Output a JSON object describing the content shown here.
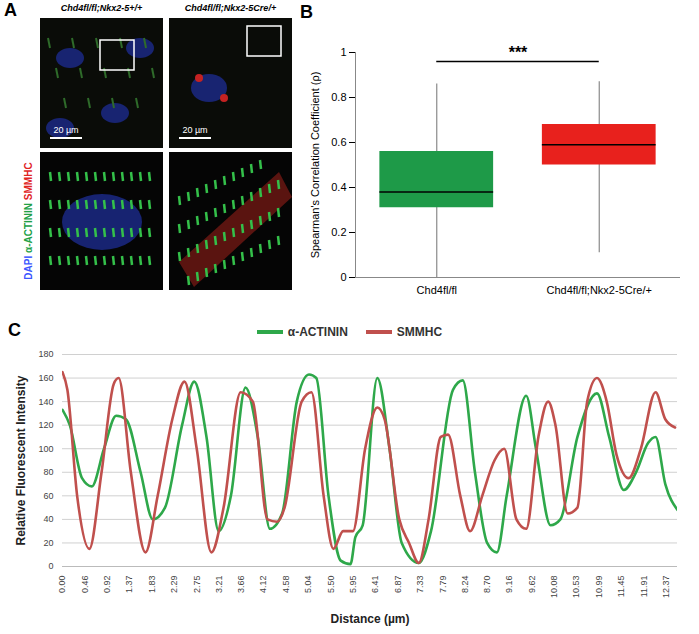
{
  "panel_a": {
    "panel_label": "A",
    "columns": [
      "Chd4fl/fl;Nkx2-5+/+",
      "Chd4fl/fl;Nkx2-5Cre/+"
    ],
    "scale_bar": "20 µm",
    "channels": [
      {
        "text": "DAPI",
        "color": "#3b55ff"
      },
      {
        "text": "α-ACTININ",
        "color": "#22a046"
      },
      {
        "text": "SMMHC",
        "color": "#e0261f"
      }
    ]
  },
  "chart_data": [
    {
      "panel_label": "B",
      "type": "box",
      "categories": [
        "Chd4fl/fl",
        "Chd4fl/fl;Nkx2-5Cre/+"
      ],
      "colors": [
        "#1e9a48",
        "#e8211d"
      ],
      "boxes": [
        {
          "min": 0,
          "q1": 0.31,
          "median": 0.38,
          "q3": 0.56,
          "max": 0.86
        },
        {
          "min": 0.11,
          "q1": 0.5,
          "median": 0.59,
          "q3": 0.68,
          "max": 0.87
        }
      ],
      "ylabel": "Spearman's Correlation Coefficient (ρ)",
      "ylim": [
        0,
        1
      ],
      "yticks": [
        0,
        0.2,
        0.4,
        0.6,
        0.8,
        1
      ],
      "annotations": [
        {
          "text": "***",
          "x": [
            0,
            1
          ],
          "y": 0.96
        }
      ]
    },
    {
      "panel_label": "C",
      "type": "line",
      "xlabel": "Distance (µm)",
      "ylabel": "Relative Fluorescent Intensity",
      "xlim": [
        0,
        12.6
      ],
      "xticks": [
        {
          "value": 0,
          "label": "0.00"
        },
        {
          "value": 0.46,
          "label": "0.46"
        },
        {
          "value": 0.92,
          "label": "0.92"
        },
        {
          "value": 1.37,
          "label": "1.37"
        },
        {
          "value": 1.83,
          "label": "1.83"
        },
        {
          "value": 2.29,
          "label": "2.29"
        },
        {
          "value": 2.75,
          "label": "2.75"
        },
        {
          "value": 3.21,
          "label": "3.21"
        },
        {
          "value": 3.66,
          "label": "3.66"
        },
        {
          "value": 4.12,
          "label": "4.12"
        },
        {
          "value": 4.58,
          "label": "4.58"
        },
        {
          "value": 5.04,
          "label": "5.04"
        },
        {
          "value": 5.5,
          "label": "5.50"
        },
        {
          "value": 5.95,
          "label": "5.95"
        },
        {
          "value": 6.41,
          "label": "6.41"
        },
        {
          "value": 6.87,
          "label": "6.87"
        },
        {
          "value": 7.33,
          "label": "7.33"
        },
        {
          "value": 7.79,
          "label": "7.79"
        },
        {
          "value": 8.24,
          "label": "8.24"
        },
        {
          "value": 8.7,
          "label": "8.70"
        },
        {
          "value": 9.16,
          "label": "9.16"
        },
        {
          "value": 9.62,
          "label": "9.62"
        },
        {
          "value": 10.08,
          "label": "10.08"
        },
        {
          "value": 10.53,
          "label": "10.53"
        },
        {
          "value": 10.99,
          "label": "10.99"
        },
        {
          "value": 11.45,
          "label": "11.45"
        },
        {
          "value": 11.91,
          "label": "11.91"
        },
        {
          "value": 12.37,
          "label": "12.37"
        }
      ],
      "ylim": [
        0,
        180
      ],
      "yticks": [
        0,
        20,
        40,
        60,
        80,
        100,
        120,
        140,
        160,
        180
      ],
      "grid": true,
      "legend": "top",
      "series": [
        {
          "name": "α-ACTININ",
          "color": "#2ea84a",
          "x": [
            0,
            0.15,
            0.4,
            0.6,
            0.85,
            1.1,
            1.3,
            1.6,
            1.85,
            2.1,
            2.45,
            2.7,
            2.95,
            3.2,
            3.45,
            3.75,
            4.0,
            4.25,
            4.5,
            4.8,
            5.05,
            5.2,
            5.45,
            5.7,
            5.9,
            6.0,
            6.15,
            6.45,
            6.7,
            6.95,
            7.3,
            7.55,
            8.0,
            8.2,
            8.45,
            8.7,
            8.9,
            9.1,
            9.5,
            9.7,
            10.0,
            10.2,
            10.55,
            10.95,
            11.2,
            11.5,
            11.75,
            12.0,
            12.15,
            12.35,
            12.6
          ],
          "values": [
            133,
            120,
            75,
            68,
            100,
            128,
            125,
            80,
            40,
            50,
            120,
            157,
            110,
            30,
            60,
            152,
            110,
            32,
            45,
            140,
            163,
            160,
            60,
            5,
            2,
            25,
            35,
            160,
            100,
            20,
            3,
            30,
            150,
            158,
            80,
            20,
            12,
            60,
            145,
            100,
            35,
            40,
            110,
            147,
            110,
            65,
            80,
            105,
            110,
            70,
            48
          ]
        },
        {
          "name": "SMMHC",
          "color": "#c0504d",
          "x": [
            0,
            0.1,
            0.3,
            0.55,
            0.8,
            1.05,
            1.15,
            1.4,
            1.7,
            1.95,
            2.25,
            2.5,
            2.75,
            3.05,
            3.3,
            3.65,
            3.9,
            4.2,
            4.4,
            4.55,
            4.9,
            5.1,
            5.35,
            5.55,
            5.75,
            5.95,
            6.2,
            6.45,
            6.6,
            6.9,
            7.1,
            7.3,
            7.5,
            7.75,
            7.9,
            8.15,
            8.35,
            8.6,
            8.85,
            9.05,
            9.3,
            9.5,
            9.75,
            9.95,
            10.1,
            10.35,
            10.55,
            10.75,
            10.95,
            11.15,
            11.35,
            11.6,
            11.85,
            12.15,
            12.35,
            12.55
          ],
          "values": [
            165,
            150,
            60,
            15,
            80,
            155,
            160,
            80,
            12,
            60,
            125,
            157,
            100,
            12,
            50,
            148,
            140,
            40,
            38,
            50,
            140,
            148,
            60,
            15,
            30,
            30,
            100,
            135,
            125,
            40,
            20,
            3,
            40,
            110,
            112,
            60,
            30,
            60,
            90,
            100,
            40,
            32,
            110,
            140,
            120,
            45,
            50,
            140,
            160,
            140,
            95,
            75,
            100,
            148,
            125,
            118
          ]
        }
      ]
    }
  ]
}
